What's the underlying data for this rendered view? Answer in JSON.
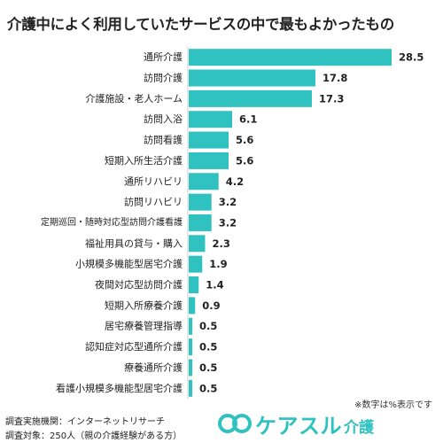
{
  "header": {
    "title": "介護中によく利用していたサービスの中で最もよかったもの"
  },
  "note": "※数字は%表示です",
  "footer": {
    "org": "調査実施機関：インターネットリサーチ",
    "target": "調査対象：250人（親の介護経験がある方）"
  },
  "brand": {
    "name": "ケアスル",
    "sub": "介護",
    "color": "#2fc2c0"
  },
  "chart_data": {
    "type": "bar",
    "orientation": "horizontal",
    "title": "介護中によく利用していたサービスの中で最もよかったもの",
    "categories": [
      "通所介護",
      "訪問介護",
      "介護施設・老人ホーム",
      "訪問入浴",
      "訪問看護",
      "短期入所生活介護",
      "通所リハビリ",
      "訪問リハビリ",
      "定期巡回・随時対応型訪問介護看護",
      "福祉用具の貸与・購入",
      "小規模多機能型居宅介護",
      "夜間対応型訪問介護",
      "短期入所療養介護",
      "居宅療養管理指導",
      "認知症対応型通所介護",
      "療養通所介護",
      "看護小規模多機能型居宅介護"
    ],
    "values": [
      28.5,
      17.8,
      17.3,
      6.1,
      5.6,
      5.6,
      4.2,
      3.2,
      3.2,
      2.3,
      1.9,
      1.4,
      0.9,
      0.5,
      0.5,
      0.5,
      0.5
    ],
    "value_labels": [
      "28.5",
      "17.8",
      "17.3",
      "6.1",
      "5.6",
      "5.6",
      "4.2",
      "3.2",
      "3.2",
      "2.3",
      "1.9",
      "1.4",
      "0.9",
      "0.5",
      "0.5",
      "0.5",
      "0.5"
    ],
    "xlim": [
      0,
      28.5
    ],
    "bar_color": "#2fc2c0",
    "grid": false,
    "sorted": "descending"
  }
}
